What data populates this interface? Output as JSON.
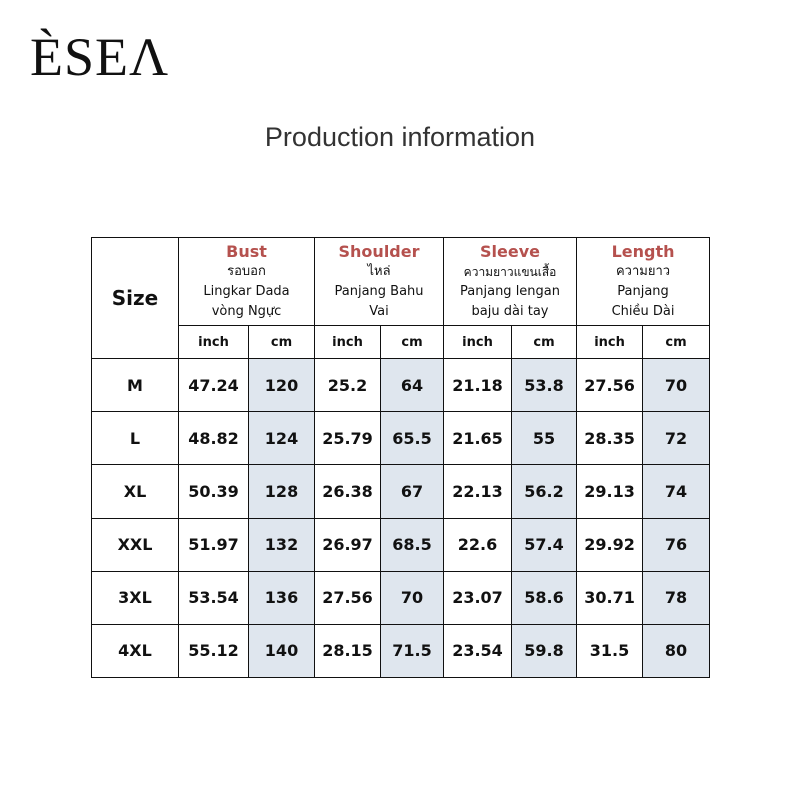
{
  "brand": {
    "logo_text": "ÈSEΛ"
  },
  "title": "Production information",
  "size_table": {
    "size_header": "Size",
    "groups": [
      {
        "en": "Bust",
        "th": "รอบอก",
        "id": "Lingkar Dada",
        "vi": "vòng Ngực"
      },
      {
        "en": "Shoulder",
        "th": "ไหล่",
        "id": "Panjang Bahu",
        "vi": "Vai"
      },
      {
        "en": "Sleeve",
        "th": "ความยาวแขนเสื้อ",
        "id": "Panjang lengan",
        "id2a": "baju",
        "id2b": "dài tay"
      },
      {
        "en": "Length",
        "th": "ความยาว",
        "id": "Panjang",
        "vi": "Chiều Dài"
      }
    ],
    "units": {
      "inch": "inch",
      "cm": "cm"
    },
    "rows": [
      {
        "size": "M",
        "bust_in": "47.24",
        "bust_cm": "120",
        "shoulder_in": "25.2",
        "shoulder_cm": "64",
        "sleeve_in": "21.18",
        "sleeve_cm": "53.8",
        "length_in": "27.56",
        "length_cm": "70"
      },
      {
        "size": "L",
        "bust_in": "48.82",
        "bust_cm": "124",
        "shoulder_in": "25.79",
        "shoulder_cm": "65.5",
        "sleeve_in": "21.65",
        "sleeve_cm": "55",
        "length_in": "28.35",
        "length_cm": "72"
      },
      {
        "size": "XL",
        "bust_in": "50.39",
        "bust_cm": "128",
        "shoulder_in": "26.38",
        "shoulder_cm": "67",
        "sleeve_in": "22.13",
        "sleeve_cm": "56.2",
        "length_in": "29.13",
        "length_cm": "74"
      },
      {
        "size": "XXL",
        "bust_in": "51.97",
        "bust_cm": "132",
        "shoulder_in": "26.97",
        "shoulder_cm": "68.5",
        "sleeve_in": "22.6",
        "sleeve_cm": "57.4",
        "length_in": "29.92",
        "length_cm": "76"
      },
      {
        "size": "3XL",
        "bust_in": "53.54",
        "bust_cm": "136",
        "shoulder_in": "27.56",
        "shoulder_cm": "70",
        "sleeve_in": "23.07",
        "sleeve_cm": "58.6",
        "length_in": "30.71",
        "length_cm": "78"
      },
      {
        "size": "4XL",
        "bust_in": "55.12",
        "bust_cm": "140",
        "shoulder_in": "28.15",
        "shoulder_cm": "71.5",
        "sleeve_in": "23.54",
        "sleeve_cm": "59.8",
        "length_in": "31.5",
        "length_cm": "80"
      }
    ]
  },
  "colors": {
    "header_accent": "#b5514e",
    "cm_column_fill": "#dfe6ee"
  }
}
